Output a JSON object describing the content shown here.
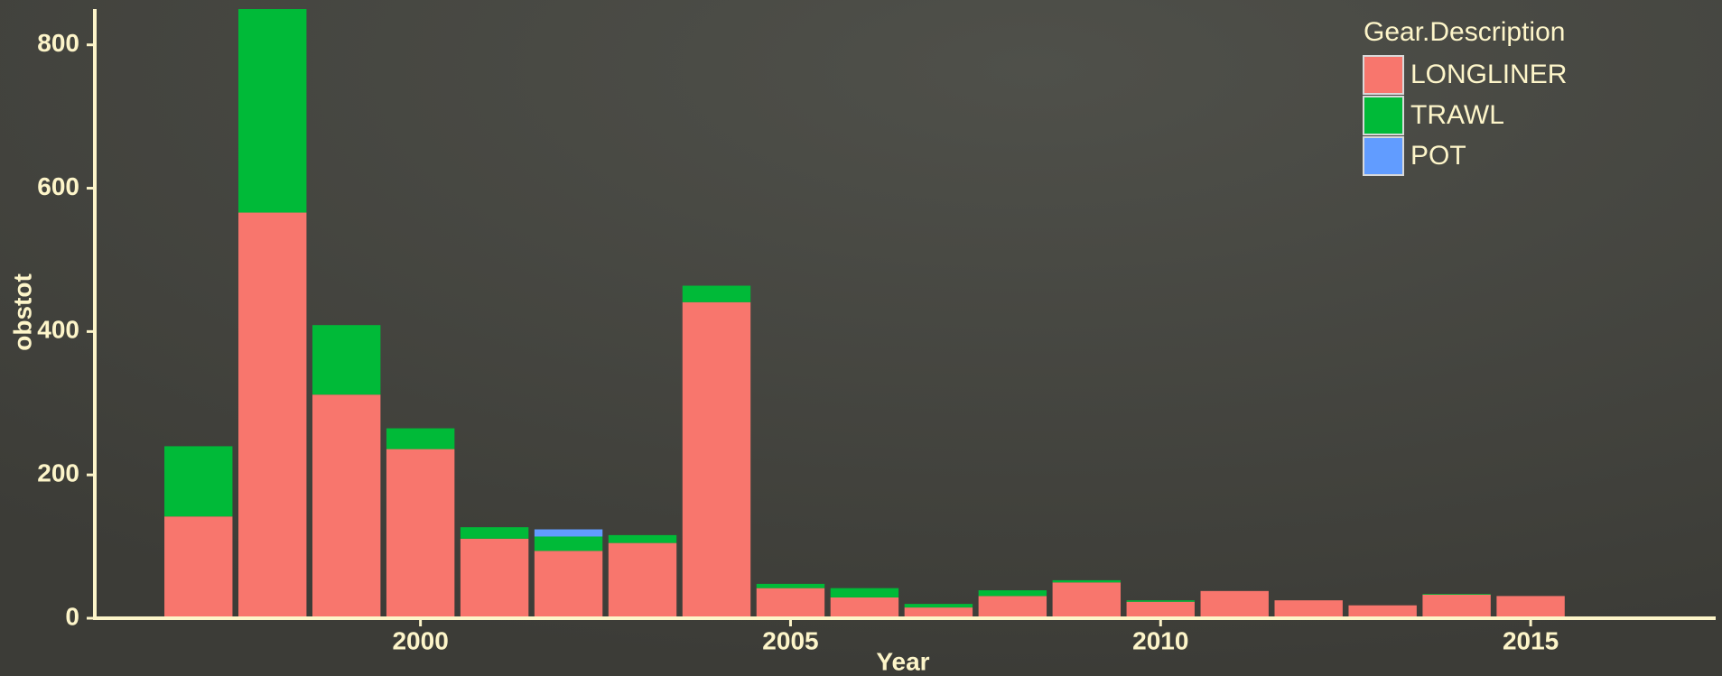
{
  "chart_data": {
    "type": "bar",
    "stacked": true,
    "x_label": "Year",
    "y_label": "obstot",
    "legend_title": "Gear.Description",
    "legend_position": "top-right",
    "x": [
      1997,
      1998,
      1999,
      2000,
      2001,
      2002,
      2003,
      2004,
      2005,
      2006,
      2007,
      2008,
      2009,
      2010,
      2011,
      2012,
      2013,
      2014,
      2015
    ],
    "series": [
      {
        "name": "LONGLINER",
        "color": "#f8766d",
        "values": [
          142,
          566,
          312,
          236,
          111,
          94,
          105,
          441,
          42,
          29,
          15,
          31,
          50,
          23,
          38,
          25,
          18,
          33,
          31
        ]
      },
      {
        "name": "TRAWL",
        "color": "#00ba38",
        "values": [
          98,
          284,
          97,
          29,
          16,
          20,
          11,
          23,
          6,
          13,
          5,
          8,
          3,
          2,
          0,
          0,
          0,
          1,
          0
        ]
      },
      {
        "name": "POT",
        "color": "#619cff",
        "values": [
          0,
          0,
          0,
          0,
          0,
          10,
          0,
          0,
          0,
          0,
          0,
          0,
          0,
          0,
          0,
          0,
          0,
          0,
          0
        ]
      }
    ],
    "xlim": [
      1995.6,
      2017.5
    ],
    "xticks": [
      2000,
      2005,
      2010,
      2015
    ],
    "ylim": [
      0,
      850
    ],
    "yticks": [
      0,
      200,
      400,
      600,
      800
    ]
  }
}
